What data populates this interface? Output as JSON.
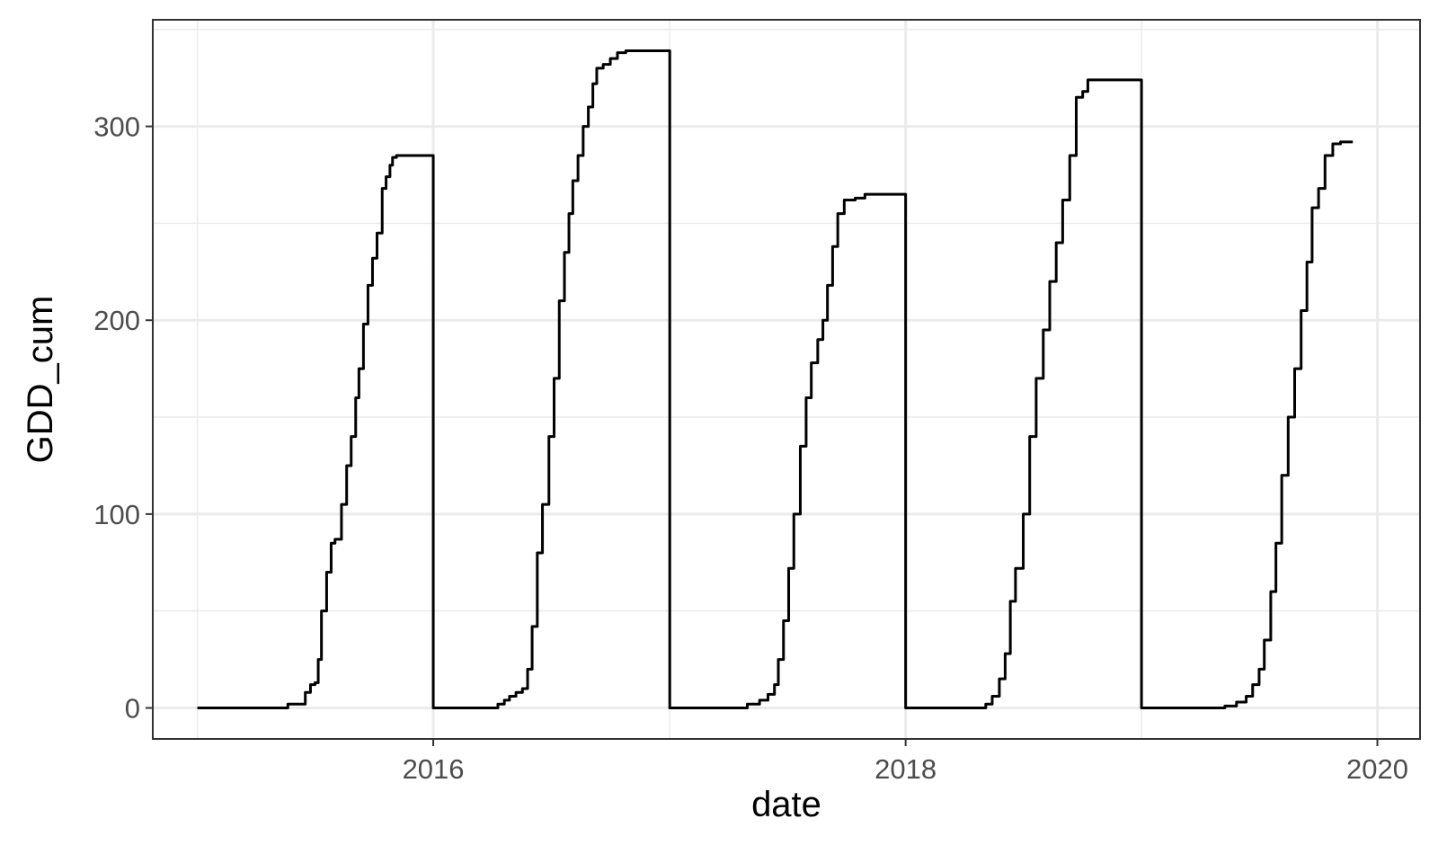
{
  "chart_data": {
    "type": "line",
    "title": "",
    "xlabel": "date",
    "ylabel": "GDD_cum",
    "xlim": [
      "2014-10-24",
      "2020-03-07"
    ],
    "ylim": [
      -16,
      355
    ],
    "x_ticks": [
      "2016-01-01",
      "2018-01-01",
      "2020-01-01"
    ],
    "x_tick_labels": [
      "2016",
      "2018",
      "2020"
    ],
    "y_ticks": [
      0,
      100,
      200,
      300
    ],
    "y_tick_labels": [
      "0",
      "100",
      "200",
      "300"
    ],
    "grid": true,
    "legend": "none",
    "line_color": "#000000",
    "series": [
      {
        "points": [
          [
            "2015-01-01",
            0
          ],
          [
            "2015-05-20",
            0
          ],
          [
            "2015-05-21",
            2
          ],
          [
            "2015-06-12",
            2
          ],
          [
            "2015-06-17",
            8
          ],
          [
            "2015-06-25",
            12
          ],
          [
            "2015-07-02",
            13
          ],
          [
            "2015-07-07",
            25
          ],
          [
            "2015-07-12",
            50
          ],
          [
            "2015-07-20",
            70
          ],
          [
            "2015-07-27",
            85
          ],
          [
            "2015-08-02",
            87
          ],
          [
            "2015-08-12",
            105
          ],
          [
            "2015-08-20",
            125
          ],
          [
            "2015-08-27",
            140
          ],
          [
            "2015-09-03",
            160
          ],
          [
            "2015-09-08",
            175
          ],
          [
            "2015-09-15",
            198
          ],
          [
            "2015-09-22",
            218
          ],
          [
            "2015-09-29",
            232
          ],
          [
            "2015-10-06",
            245
          ],
          [
            "2015-10-14",
            268
          ],
          [
            "2015-10-20",
            274
          ],
          [
            "2015-10-26",
            280
          ],
          [
            "2015-10-30",
            284
          ],
          [
            "2015-11-05",
            285
          ],
          [
            "2016-01-01",
            285
          ],
          [
            "2016-01-01",
            0
          ],
          [
            "2016-03-20",
            0
          ],
          [
            "2016-04-10",
            2
          ],
          [
            "2016-04-20",
            4
          ],
          [
            "2016-04-28",
            6
          ],
          [
            "2016-05-08",
            8
          ],
          [
            "2016-05-18",
            10
          ],
          [
            "2016-05-26",
            20
          ],
          [
            "2016-06-02",
            42
          ],
          [
            "2016-06-10",
            80
          ],
          [
            "2016-06-18",
            105
          ],
          [
            "2016-06-28",
            140
          ],
          [
            "2016-07-06",
            170
          ],
          [
            "2016-07-14",
            210
          ],
          [
            "2016-07-22",
            235
          ],
          [
            "2016-07-29",
            255
          ],
          [
            "2016-08-04",
            272
          ],
          [
            "2016-08-12",
            285
          ],
          [
            "2016-08-20",
            300
          ],
          [
            "2016-08-28",
            310
          ],
          [
            "2016-09-04",
            322
          ],
          [
            "2016-09-10",
            330
          ],
          [
            "2016-09-20",
            332
          ],
          [
            "2016-10-01",
            335
          ],
          [
            "2016-10-12",
            338
          ],
          [
            "2016-10-25",
            339
          ],
          [
            "2017-01-01",
            339
          ],
          [
            "2017-01-01",
            0
          ],
          [
            "2017-04-01",
            0
          ],
          [
            "2017-05-01",
            2
          ],
          [
            "2017-05-20",
            4
          ],
          [
            "2017-06-02",
            7
          ],
          [
            "2017-06-12",
            12
          ],
          [
            "2017-06-18",
            25
          ],
          [
            "2017-06-26",
            45
          ],
          [
            "2017-07-04",
            72
          ],
          [
            "2017-07-12",
            100
          ],
          [
            "2017-07-22",
            135
          ],
          [
            "2017-07-31",
            160
          ],
          [
            "2017-08-08",
            178
          ],
          [
            "2017-08-18",
            190
          ],
          [
            "2017-08-26",
            200
          ],
          [
            "2017-09-02",
            218
          ],
          [
            "2017-09-10",
            238
          ],
          [
            "2017-09-18",
            255
          ],
          [
            "2017-09-28",
            262
          ],
          [
            "2017-10-15",
            263
          ],
          [
            "2017-10-30",
            265
          ],
          [
            "2018-01-01",
            265
          ],
          [
            "2018-01-01",
            0
          ],
          [
            "2018-04-20",
            0
          ],
          [
            "2018-05-05",
            2
          ],
          [
            "2018-05-15",
            6
          ],
          [
            "2018-05-26",
            15
          ],
          [
            "2018-06-04",
            28
          ],
          [
            "2018-06-12",
            55
          ],
          [
            "2018-06-20",
            72
          ],
          [
            "2018-07-02",
            100
          ],
          [
            "2018-07-12",
            140
          ],
          [
            "2018-07-22",
            170
          ],
          [
            "2018-08-02",
            195
          ],
          [
            "2018-08-12",
            220
          ],
          [
            "2018-08-22",
            240
          ],
          [
            "2018-09-01",
            262
          ],
          [
            "2018-09-12",
            285
          ],
          [
            "2018-09-22",
            315
          ],
          [
            "2018-10-02",
            318
          ],
          [
            "2018-10-10",
            324
          ],
          [
            "2019-01-01",
            324
          ],
          [
            "2019-01-01",
            0
          ],
          [
            "2019-04-01",
            0
          ],
          [
            "2019-05-10",
            1
          ],
          [
            "2019-05-28",
            3
          ],
          [
            "2019-06-12",
            6
          ],
          [
            "2019-06-22",
            12
          ],
          [
            "2019-07-02",
            20
          ],
          [
            "2019-07-10",
            35
          ],
          [
            "2019-07-20",
            60
          ],
          [
            "2019-07-28",
            85
          ],
          [
            "2019-08-06",
            120
          ],
          [
            "2019-08-16",
            150
          ],
          [
            "2019-08-26",
            175
          ],
          [
            "2019-09-05",
            205
          ],
          [
            "2019-09-14",
            230
          ],
          [
            "2019-09-22",
            258
          ],
          [
            "2019-10-02",
            268
          ],
          [
            "2019-10-12",
            285
          ],
          [
            "2019-10-24",
            291
          ],
          [
            "2019-11-05",
            292
          ],
          [
            "2019-11-24",
            292
          ]
        ]
      }
    ]
  }
}
